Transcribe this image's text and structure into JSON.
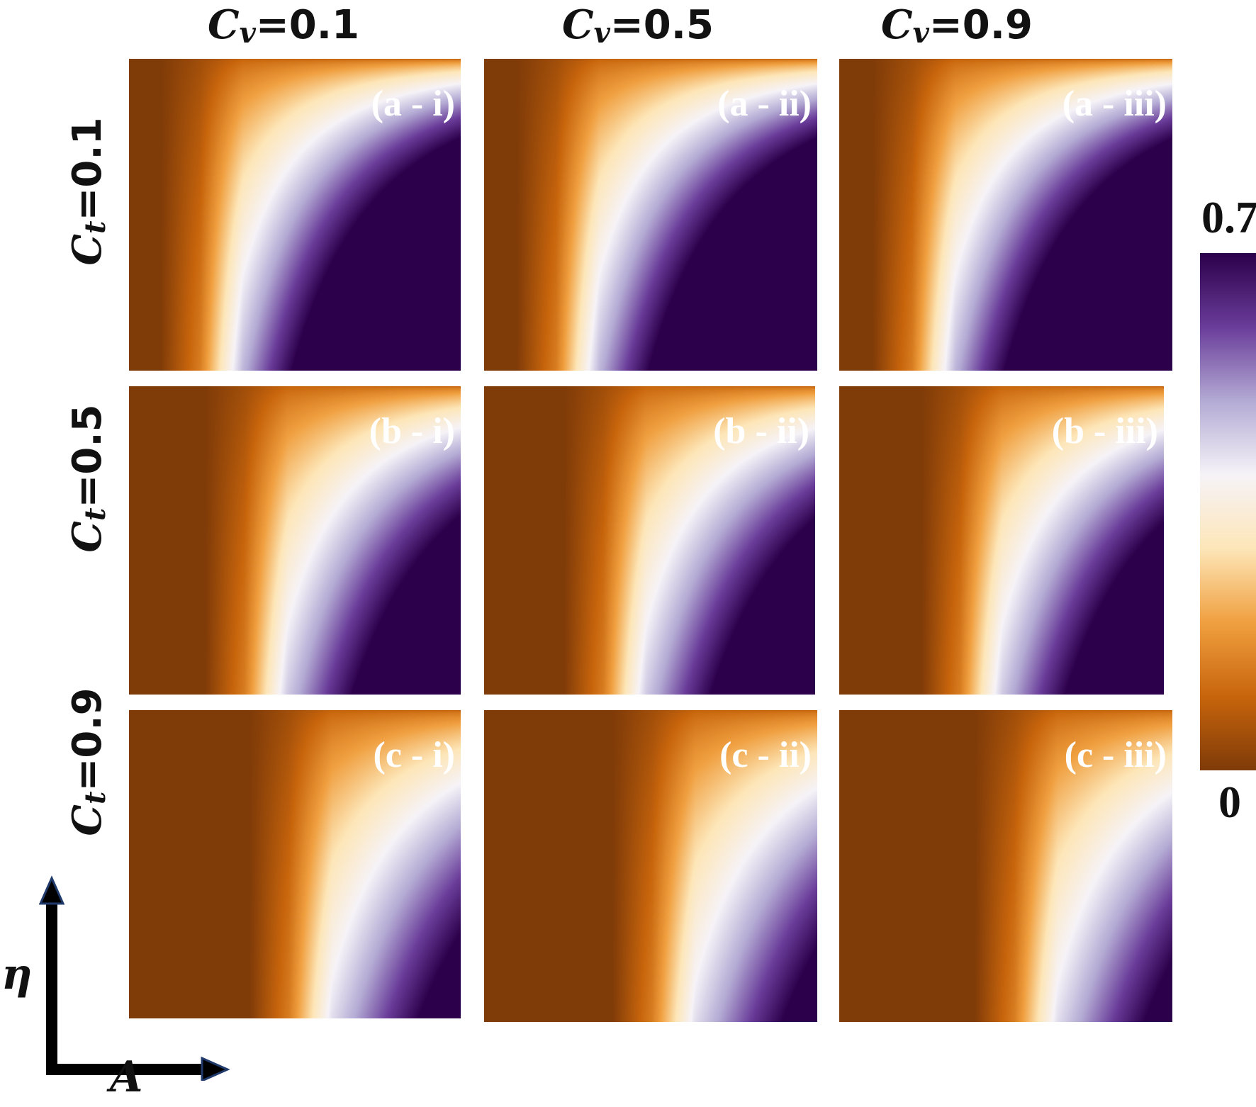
{
  "chart_data": {
    "type": "heatmap",
    "grid_rows": 3,
    "grid_cols": 3,
    "column_headers": [
      {
        "symbol": "C",
        "sub": "v",
        "rest": "=0.1"
      },
      {
        "symbol": "C",
        "sub": "v",
        "rest": "=0.5"
      },
      {
        "symbol": "C",
        "sub": "v",
        "rest": "=0.9"
      }
    ],
    "row_headers": [
      {
        "symbol": "C",
        "sub": "t",
        "rest": "=0.1"
      },
      {
        "symbol": "C",
        "sub": "t",
        "rest": "=0.5"
      },
      {
        "symbol": "C",
        "sub": "t",
        "rest": "=0.9"
      }
    ],
    "panels": [
      {
        "label": "(a - i)",
        "C_v": 0.1,
        "C_t": 0.1
      },
      {
        "label": "(a - ii)",
        "C_v": 0.5,
        "C_t": 0.1
      },
      {
        "label": "(a - iii)",
        "C_v": 0.9,
        "C_t": 0.1
      },
      {
        "label": "(b - i)",
        "C_v": 0.1,
        "C_t": 0.5
      },
      {
        "label": "(b - ii)",
        "C_v": 0.5,
        "C_t": 0.5
      },
      {
        "label": "(b - iii)",
        "C_v": 0.9,
        "C_t": 0.5
      },
      {
        "label": "(c - i)",
        "C_v": 0.1,
        "C_t": 0.9
      },
      {
        "label": "(c - ii)",
        "C_v": 0.5,
        "C_t": 0.9
      },
      {
        "label": "(c - iii)",
        "C_v": 0.9,
        "C_t": 0.9
      }
    ],
    "colorbar": {
      "min_label": "0",
      "max_label": "0.7",
      "range": [
        0,
        0.7
      ],
      "colors": [
        "#7f3b08",
        "#c8650c",
        "#f0a040",
        "#fde6b8",
        "#f6f3f8",
        "#b4abd4",
        "#6a3d9a",
        "#2d004b"
      ]
    },
    "xlabel": "A",
    "ylabel": "η"
  }
}
